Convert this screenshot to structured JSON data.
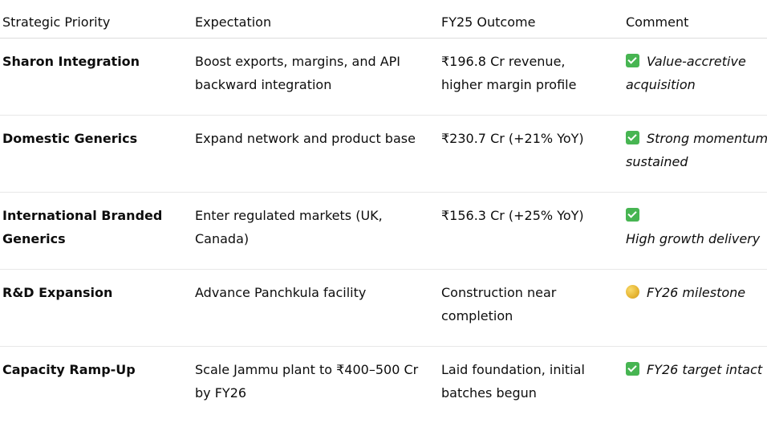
{
  "headers": {
    "priority": "Strategic Priority",
    "expectation": "Expectation",
    "outcome": "FY25 Outcome",
    "comment": "Comment"
  },
  "rows": [
    {
      "priority": "Sharon Integration",
      "expectation": "Boost exports, margins, and API backward integration",
      "outcome": "₹196.8 Cr revenue, higher margin profile",
      "comment_icon": "check-icon",
      "comment_line1": "Value-accretive",
      "comment_line2": "acquisition"
    },
    {
      "priority": "Domestic Generics",
      "expectation": "Expand network and product base",
      "outcome": "₹230.7 Cr (+21% YoY)",
      "comment_icon": "check-icon",
      "comment_line1": "Strong momentum",
      "comment_line2": "sustained"
    },
    {
      "priority": "International Branded Generics",
      "expectation": "Enter regulated markets (UK, Canada)",
      "outcome": "₹156.3 Cr (+25% YoY)",
      "comment_icon": "check-icon",
      "comment_line1": "High growth delivery",
      "comment_line2": ""
    },
    {
      "priority": "R&D Expansion",
      "expectation": "Advance Panchkula facility",
      "outcome": "Construction near completion",
      "comment_icon": "coin-icon",
      "comment_line1": "FY26 milestone",
      "comment_line2": ""
    },
    {
      "priority": "Capacity Ramp-Up",
      "expectation": "Scale Jammu plant to ₹400–500 Cr by FY26",
      "outcome": "Laid foundation, initial batches begun",
      "comment_icon": "check-icon",
      "comment_line1": "FY26 target intact",
      "comment_line2": ""
    }
  ]
}
